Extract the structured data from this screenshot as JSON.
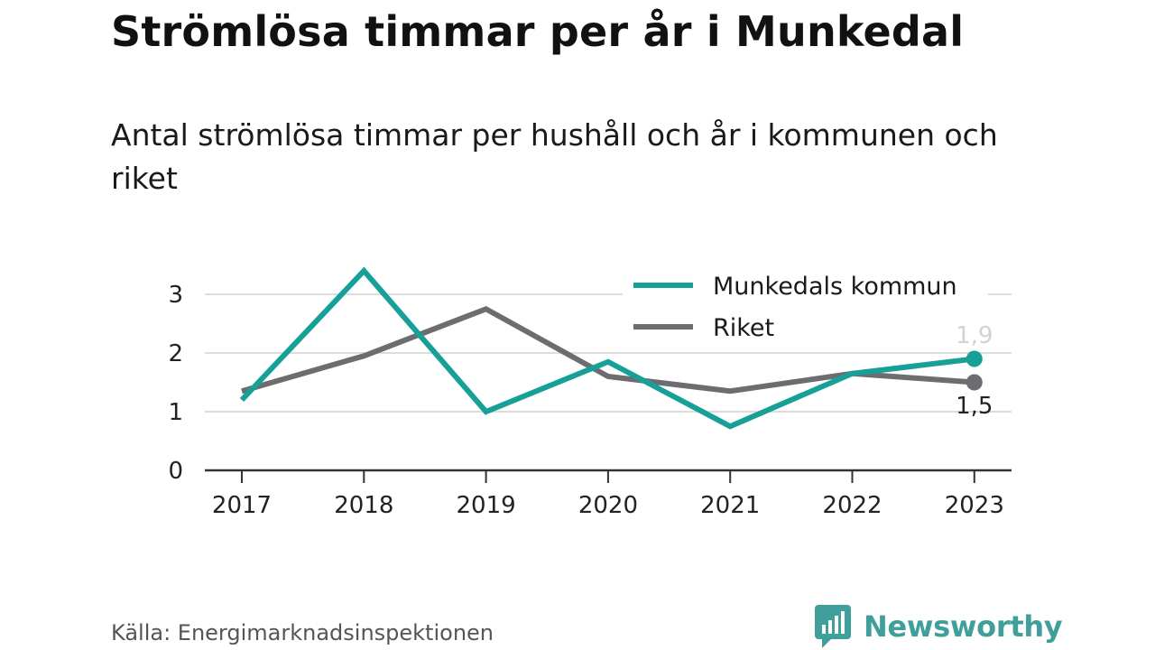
{
  "header": {
    "title": "Strömlösa timmar per år i Munkedal",
    "subtitle": "Antal strömlösa timmar per hushåll och år i kommunen och riket"
  },
  "chart_data": {
    "type": "line",
    "x": [
      "2017",
      "2018",
      "2019",
      "2020",
      "2021",
      "2022",
      "2023"
    ],
    "yticks": [
      "0",
      "1",
      "2",
      "3"
    ],
    "ylim": [
      0,
      3.4
    ],
    "grid": true,
    "legend_position": "top-right",
    "series": [
      {
        "name": "Munkedals kommun",
        "color": "#17a097",
        "values": [
          1.2,
          3.4,
          1.0,
          1.85,
          0.75,
          1.65,
          1.9
        ],
        "end_label": "1,9"
      },
      {
        "name": "Riket",
        "color": "#6d6c71",
        "values": [
          1.35,
          1.95,
          2.75,
          1.6,
          1.35,
          1.65,
          1.5
        ],
        "end_label": "1,5"
      }
    ]
  },
  "footer": {
    "source": "Källa: Energimarknadsinspektionen",
    "brand": "Newsworthy",
    "brand_color": "#3f9f9a"
  }
}
